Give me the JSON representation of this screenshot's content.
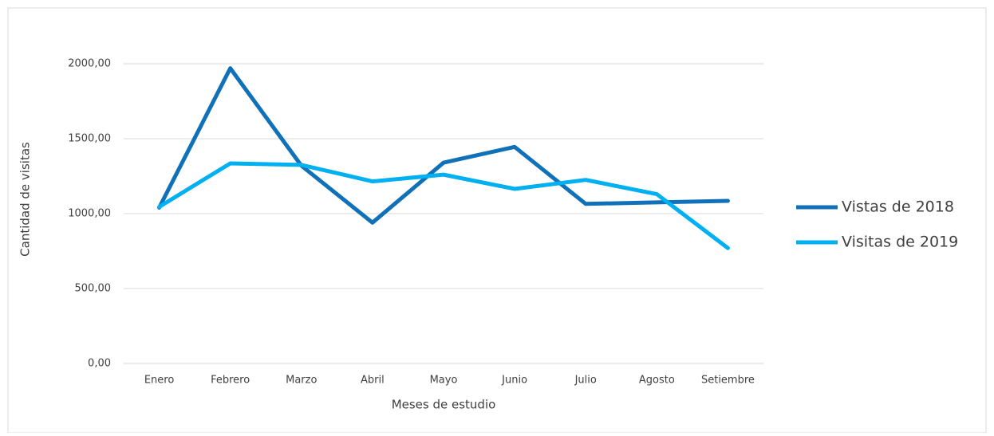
{
  "chart_data": {
    "type": "line",
    "xlabel": "Meses de estudio",
    "ylabel": "Cantidad de visitas",
    "categories": [
      "Enero",
      "Febrero",
      "Marzo",
      "Abril",
      "Mayo",
      "Junio",
      "Julio",
      "Agosto",
      "Setiembre"
    ],
    "series": [
      {
        "name": "Vistas de 2018",
        "color": "#1070b8",
        "values": [
          1040,
          1970,
          1320,
          940,
          1340,
          1445,
          1065,
          1075,
          1085
        ]
      },
      {
        "name": "Visitas de 2019",
        "color": "#00b0f0",
        "values": [
          1045,
          1335,
          1325,
          1215,
          1260,
          1165,
          1225,
          1130,
          770
        ]
      }
    ],
    "ylim": [
      0,
      2000
    ],
    "yticks": [
      {
        "value": 0,
        "label": "0,00"
      },
      {
        "value": 500,
        "label": "500,00"
      },
      {
        "value": 1000,
        "label": "1000,00"
      },
      {
        "value": 1500,
        "label": "1500,00"
      },
      {
        "value": 2000,
        "label": "2000,00"
      }
    ],
    "grid": true,
    "legend": "right"
  }
}
